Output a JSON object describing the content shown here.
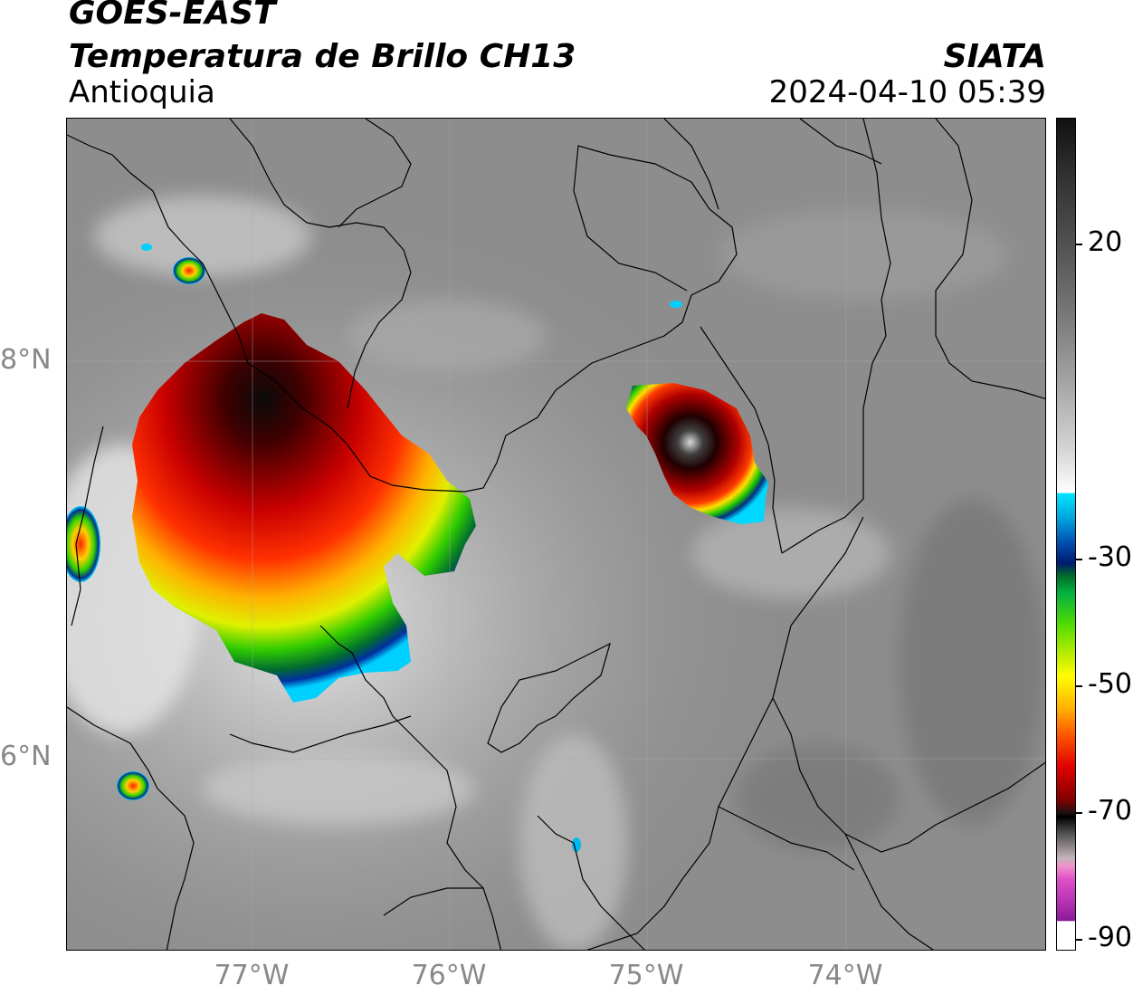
{
  "header": {
    "satellite": "GOES-EAST",
    "product": "Temperatura de Brillo CH13",
    "region": "Antioquia",
    "org": "SIATA",
    "datetime": "2024-04-10 05:39"
  },
  "map": {
    "lon_labels": [
      "77°W",
      "76°W",
      "75°W",
      "74°W"
    ],
    "lat_labels": [
      "8°N",
      "6°N"
    ]
  },
  "colorbar": {
    "tick_labels": [
      "20",
      "-30",
      "-50",
      "-70",
      "-90"
    ]
  }
}
